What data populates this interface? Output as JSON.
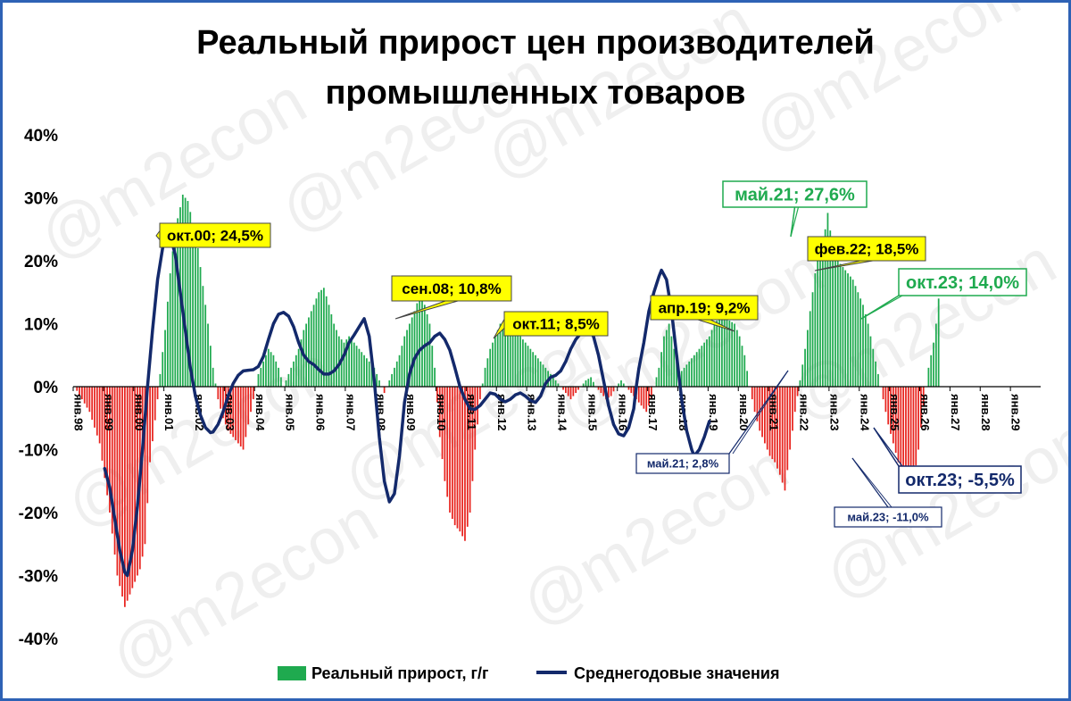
{
  "chart_data": {
    "type": "bar+line",
    "title_lines": [
      "Реальный прирост цен производителей",
      "промышленных товаров"
    ],
    "watermark": "@m2econ",
    "y_ticks": [
      "40%",
      "30%",
      "20%",
      "10%",
      "0%",
      "-10%",
      "-20%",
      "-30%",
      "-40%"
    ],
    "ylim": [
      -40,
      40
    ],
    "x_ticks": [
      "янв.98",
      "янв.99",
      "янв.00",
      "янв.01",
      "янв.02",
      "янв.03",
      "янв.04",
      "янв.05",
      "янв.06",
      "янв.07",
      "янв.08",
      "янв.09",
      "янв.10",
      "янв.11",
      "янв.12",
      "янв.13",
      "янв.14",
      "янв.15",
      "янв.16",
      "янв.17",
      "янв.18",
      "янв.19",
      "янв.20",
      "янв.21",
      "янв.22",
      "янв.23",
      "янв.24",
      "янв.25",
      "янв.26",
      "янв.27",
      "янв.28",
      "янв.29"
    ],
    "colors": {
      "positive_bar": "#1faa4f",
      "negative_bar": "#e8241f",
      "line": "#13296b",
      "yellow_label": "#ffff00",
      "green_label": "#1faa4f",
      "navy_label": "#13296b"
    },
    "bar_series": {
      "name": "Реальный прирост, г/г",
      "anchors": [
        [
          0,
          0
        ],
        [
          6,
          -4
        ],
        [
          10,
          -9
        ],
        [
          14,
          -20
        ],
        [
          17,
          -30
        ],
        [
          20,
          -35
        ],
        [
          23,
          -32
        ],
        [
          26,
          -29
        ],
        [
          28,
          -25
        ],
        [
          30,
          -12
        ],
        [
          33,
          -2
        ],
        [
          34,
          2
        ],
        [
          36,
          9
        ],
        [
          38,
          18
        ],
        [
          40,
          25
        ],
        [
          42,
          28.5
        ],
        [
          43,
          30.5
        ],
        [
          45,
          29.5
        ],
        [
          47,
          26
        ],
        [
          49,
          22
        ],
        [
          51,
          16
        ],
        [
          53,
          10
        ],
        [
          55,
          3
        ],
        [
          57,
          -2
        ],
        [
          59,
          -5
        ],
        [
          61,
          -7
        ],
        [
          63,
          -8
        ],
        [
          65,
          -9
        ],
        [
          67,
          -10
        ],
        [
          69,
          -6
        ],
        [
          71,
          -2
        ],
        [
          73,
          2
        ],
        [
          75,
          4
        ],
        [
          77,
          6
        ],
        [
          79,
          5
        ],
        [
          81,
          3
        ],
        [
          83,
          0
        ],
        [
          85,
          2
        ],
        [
          87,
          4
        ],
        [
          89,
          6
        ],
        [
          91,
          9
        ],
        [
          93,
          11
        ],
        [
          95,
          13
        ],
        [
          97,
          15
        ],
        [
          99,
          15.7
        ],
        [
          101,
          13
        ],
        [
          103,
          10
        ],
        [
          105,
          8
        ],
        [
          107,
          7
        ],
        [
          109,
          8
        ],
        [
          111,
          7
        ],
        [
          113,
          6
        ],
        [
          115,
          5
        ],
        [
          117,
          4
        ],
        [
          119,
          3
        ],
        [
          121,
          1
        ],
        [
          123,
          -1
        ],
        [
          125,
          1
        ],
        [
          127,
          3
        ],
        [
          129,
          5
        ],
        [
          131,
          8
        ],
        [
          133,
          10
        ],
        [
          135,
          12
        ],
        [
          137,
          14.5
        ],
        [
          139,
          13
        ],
        [
          141,
          10
        ],
        [
          143,
          3
        ],
        [
          145,
          -8
        ],
        [
          147,
          -15
        ],
        [
          149,
          -20
        ],
        [
          151,
          -22
        ],
        [
          153,
          -23
        ],
        [
          155,
          -24.5
        ],
        [
          157,
          -20
        ],
        [
          159,
          -10
        ],
        [
          161,
          -2
        ],
        [
          163,
          3
        ],
        [
          165,
          6
        ],
        [
          167,
          8
        ],
        [
          169,
          10
        ],
        [
          171,
          10.5
        ],
        [
          173,
          10
        ],
        [
          175,
          9
        ],
        [
          177,
          8
        ],
        [
          179,
          7
        ],
        [
          181,
          6
        ],
        [
          183,
          5
        ],
        [
          185,
          4
        ],
        [
          187,
          3
        ],
        [
          189,
          2
        ],
        [
          191,
          1
        ],
        [
          193,
          0
        ],
        [
          195,
          -1
        ],
        [
          197,
          -2
        ],
        [
          199,
          -1
        ],
        [
          201,
          0
        ],
        [
          203,
          1
        ],
        [
          205,
          1.5
        ],
        [
          207,
          0
        ],
        [
          209,
          -1
        ],
        [
          211,
          -2
        ],
        [
          213,
          -1.5
        ],
        [
          215,
          0
        ],
        [
          217,
          1
        ],
        [
          219,
          0
        ],
        [
          221,
          -1
        ],
        [
          223,
          -2
        ],
        [
          225,
          -3
        ],
        [
          227,
          -4
        ],
        [
          229,
          -2
        ],
        [
          230,
          0
        ],
        [
          232,
          3
        ],
        [
          234,
          8
        ],
        [
          236,
          10
        ],
        [
          238,
          6
        ],
        [
          240,
          2
        ],
        [
          242,
          3
        ],
        [
          244,
          4
        ],
        [
          246,
          5
        ],
        [
          248,
          6
        ],
        [
          250,
          7
        ],
        [
          252,
          8
        ],
        [
          254,
          10
        ],
        [
          256,
          11
        ],
        [
          258,
          11
        ],
        [
          260,
          10.5
        ],
        [
          262,
          10
        ],
        [
          264,
          8
        ],
        [
          266,
          5
        ],
        [
          268,
          0
        ],
        [
          270,
          -4
        ],
        [
          272,
          -7
        ],
        [
          274,
          -9
        ],
        [
          276,
          -11
        ],
        [
          278,
          -12
        ],
        [
          280,
          -14
        ],
        [
          282,
          -16.5
        ],
        [
          284,
          -10
        ],
        [
          286,
          -4
        ],
        [
          288,
          1
        ],
        [
          290,
          6
        ],
        [
          292,
          12
        ],
        [
          294,
          18
        ],
        [
          296,
          22
        ],
        [
          298,
          25
        ],
        [
          299,
          27.6
        ],
        [
          301,
          22
        ],
        [
          303,
          20
        ],
        [
          305,
          19
        ],
        [
          307,
          18
        ],
        [
          309,
          17
        ],
        [
          311,
          15
        ],
        [
          313,
          13
        ],
        [
          315,
          10
        ],
        [
          317,
          6
        ],
        [
          319,
          2
        ],
        [
          321,
          -2
        ],
        [
          323,
          -6
        ],
        [
          325,
          -9
        ],
        [
          327,
          -12
        ],
        [
          329,
          -14
        ],
        [
          331,
          -16.5
        ],
        [
          333,
          -15
        ],
        [
          335,
          -10
        ],
        [
          337,
          -3
        ],
        [
          339,
          3
        ],
        [
          341,
          7
        ],
        [
          342,
          10
        ],
        [
          343,
          14
        ]
      ]
    },
    "line_series": {
      "name": "Среднегодовые значения",
      "anchors": [
        [
          12,
          -13
        ],
        [
          14,
          -16
        ],
        [
          16,
          -21
        ],
        [
          18,
          -26
        ],
        [
          20,
          -29.5
        ],
        [
          21,
          -30
        ],
        [
          23,
          -26
        ],
        [
          25,
          -19
        ],
        [
          27,
          -10
        ],
        [
          29,
          0
        ],
        [
          31,
          9
        ],
        [
          33,
          17
        ],
        [
          35,
          22
        ],
        [
          36,
          24
        ],
        [
          37,
          24.5
        ],
        [
          38,
          24
        ],
        [
          40,
          21
        ],
        [
          42,
          15
        ],
        [
          44,
          9
        ],
        [
          46,
          3
        ],
        [
          48,
          -1.5
        ],
        [
          50,
          -4.5
        ],
        [
          52,
          -6.5
        ],
        [
          54,
          -7.3
        ],
        [
          55,
          -7.2
        ],
        [
          57,
          -6
        ],
        [
          59,
          -4
        ],
        [
          61,
          -1.5
        ],
        [
          63,
          0.5
        ],
        [
          65,
          1.8
        ],
        [
          67,
          2.5
        ],
        [
          69,
          2.6
        ],
        [
          71,
          2.7
        ],
        [
          73,
          3.2
        ],
        [
          75,
          4.8
        ],
        [
          77,
          7.5
        ],
        [
          79,
          10
        ],
        [
          81,
          11.5
        ],
        [
          83,
          11.8
        ],
        [
          85,
          11.2
        ],
        [
          87,
          9.5
        ],
        [
          89,
          7
        ],
        [
          91,
          5
        ],
        [
          93,
          4
        ],
        [
          95,
          3.5
        ],
        [
          97,
          2.7
        ],
        [
          99,
          2
        ],
        [
          101,
          2
        ],
        [
          103,
          2.5
        ],
        [
          105,
          3.5
        ],
        [
          107,
          5
        ],
        [
          109,
          7
        ],
        [
          111,
          8.2
        ],
        [
          113,
          9.5
        ],
        [
          115,
          10.8
        ],
        [
          117,
          8
        ],
        [
          119,
          1
        ],
        [
          121,
          -8
        ],
        [
          123,
          -15
        ],
        [
          125,
          -18.3
        ],
        [
          127,
          -17
        ],
        [
          129,
          -11
        ],
        [
          131,
          -2.5
        ],
        [
          133,
          2
        ],
        [
          135,
          4.5
        ],
        [
          137,
          5.8
        ],
        [
          139,
          6.5
        ],
        [
          141,
          7
        ],
        [
          143,
          8
        ],
        [
          145,
          8.5
        ],
        [
          147,
          7.5
        ],
        [
          149,
          5.8
        ],
        [
          151,
          3
        ],
        [
          153,
          0
        ],
        [
          155,
          -2
        ],
        [
          157,
          -3.5
        ],
        [
          159,
          -3.6
        ],
        [
          161,
          -3
        ],
        [
          163,
          -2
        ],
        [
          165,
          -1
        ],
        [
          167,
          -1.2
        ],
        [
          169,
          -2
        ],
        [
          171,
          -2.4
        ],
        [
          173,
          -2
        ],
        [
          175,
          -1.3
        ],
        [
          177,
          -1
        ],
        [
          179,
          -1.5
        ],
        [
          181,
          -2.2
        ],
        [
          183,
          -2.5
        ],
        [
          185,
          -1.5
        ],
        [
          187,
          0.5
        ],
        [
          189,
          1.5
        ],
        [
          191,
          1.8
        ],
        [
          193,
          2.5
        ],
        [
          195,
          4
        ],
        [
          197,
          6
        ],
        [
          199,
          7.5
        ],
        [
          201,
          8.5
        ],
        [
          203,
          9
        ],
        [
          204,
          9.2
        ],
        [
          206,
          8
        ],
        [
          208,
          5
        ],
        [
          210,
          1
        ],
        [
          212,
          -3
        ],
        [
          214,
          -6
        ],
        [
          216,
          -7.5
        ],
        [
          218,
          -7.8
        ],
        [
          220,
          -6.5
        ],
        [
          222,
          -3.5
        ],
        [
          223,
          0
        ],
        [
          224,
          2.8
        ],
        [
          226,
          7
        ],
        [
          228,
          12
        ],
        [
          230,
          15
        ],
        [
          232,
          17.5
        ],
        [
          233,
          18.5
        ],
        [
          235,
          17
        ],
        [
          237,
          12
        ],
        [
          239,
          5
        ],
        [
          241,
          -2
        ],
        [
          243,
          -7
        ],
        [
          245,
          -10
        ],
        [
          246,
          -11
        ],
        [
          248,
          -10
        ],
        [
          250,
          -8
        ],
        [
          252,
          -5.5
        ]
      ]
    },
    "annotations": [
      {
        "text": "окт.00; 24,5%",
        "style": "yellow"
      },
      {
        "text": "сен.08; 10,8%",
        "style": "yellow"
      },
      {
        "text": "окт.11; 8,5%",
        "style": "yellow"
      },
      {
        "text": "апр.19; 9,2%",
        "style": "yellow"
      },
      {
        "text": "фев.22; 18,5%",
        "style": "yellow"
      },
      {
        "text": "май.21; 27,6%",
        "style": "green"
      },
      {
        "text": "окт.23; 14,0%",
        "style": "green"
      },
      {
        "text": "май.21; 2,8%",
        "style": "navy-small"
      },
      {
        "text": "окт.23; -5,5%",
        "style": "navy"
      },
      {
        "text": "май.23; -11,0%",
        "style": "navy-small"
      }
    ],
    "legend": [
      {
        "label": "Реальный прирост, г/г",
        "kind": "bar"
      },
      {
        "label": "Среднегодовые значения",
        "kind": "line"
      }
    ],
    "legend_position": "bottom"
  }
}
